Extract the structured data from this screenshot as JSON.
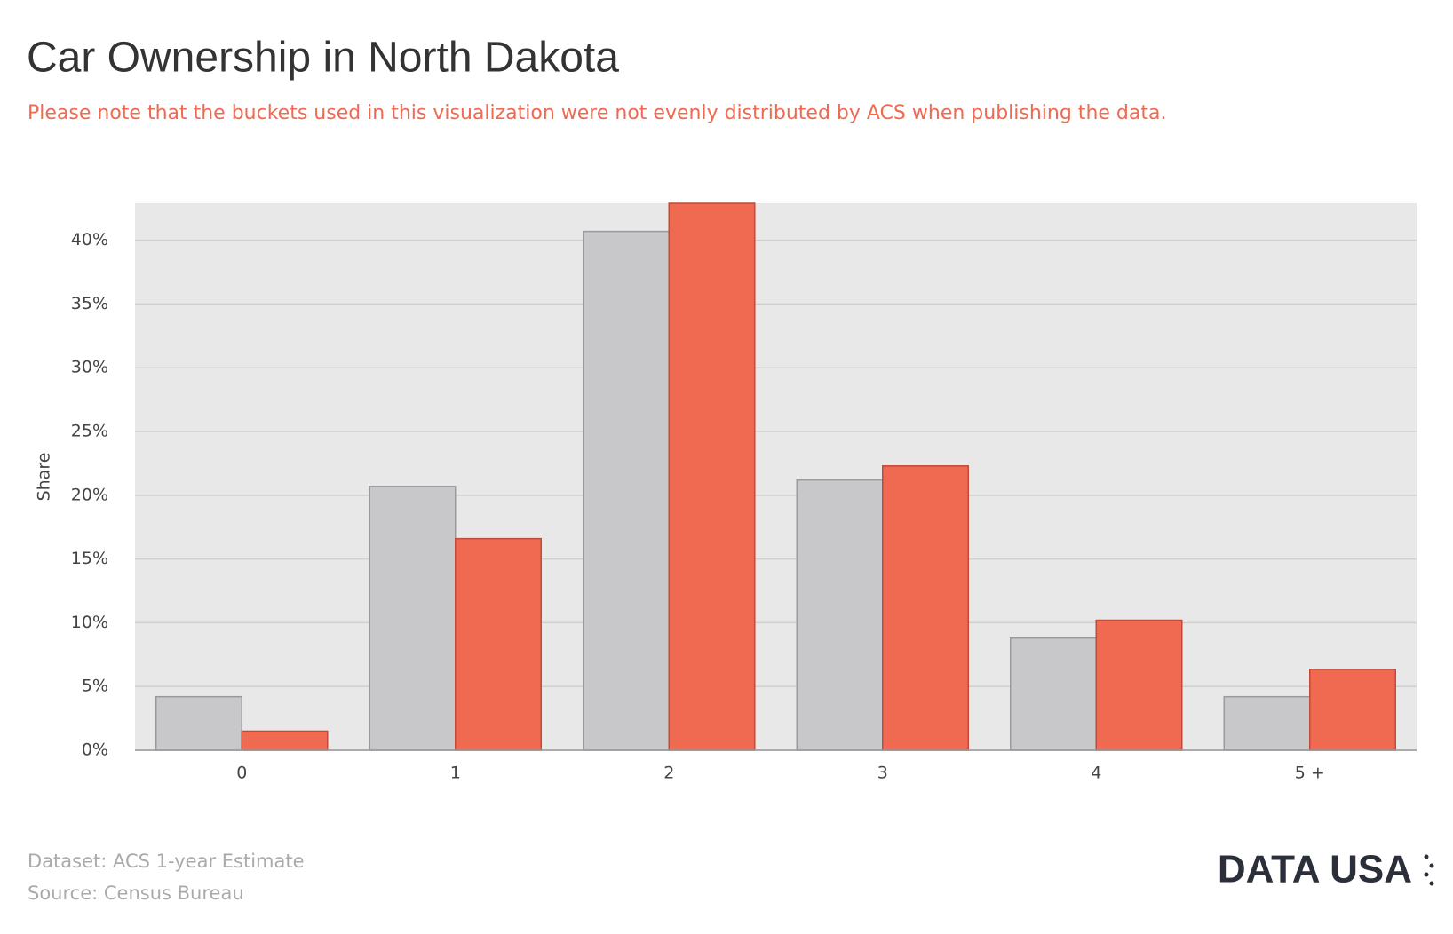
{
  "chart_data": {
    "type": "bar",
    "title": "Car Ownership in North Dakota",
    "subtitle": "Please note that the buckets used in this visualization were not evenly distributed by ACS when publishing the data.",
    "y_label": "Share",
    "dataset": "Dataset: ACS 1-year Estimate",
    "source": "Source: Census Bureau",
    "logo": "DATA USA",
    "categories": [
      "0",
      "1",
      "2",
      "3",
      "4",
      "5 +"
    ],
    "series": [
      {
        "color": "#c8c8ca",
        "values": [
          4.2,
          20.7,
          40.7,
          21.2,
          8.8,
          4.2
        ]
      },
      {
        "color": "#ef6a50",
        "values": [
          1.5,
          16.6,
          42.9,
          22.3,
          10.2,
          6.35
        ]
      }
    ],
    "ylim": [
      0,
      42.9
    ],
    "yticks": [
      {
        "value": 0,
        "label": "0%"
      },
      {
        "value": 5,
        "label": "5%"
      },
      {
        "value": 10,
        "label": "10%"
      },
      {
        "value": 15,
        "label": "15%"
      },
      {
        "value": 20,
        "label": "20%"
      },
      {
        "value": 25,
        "label": "25%"
      },
      {
        "value": 30,
        "label": "30%"
      },
      {
        "value": 35,
        "label": "35%"
      },
      {
        "value": 40,
        "label": "40%"
      }
    ],
    "grid": true
  }
}
